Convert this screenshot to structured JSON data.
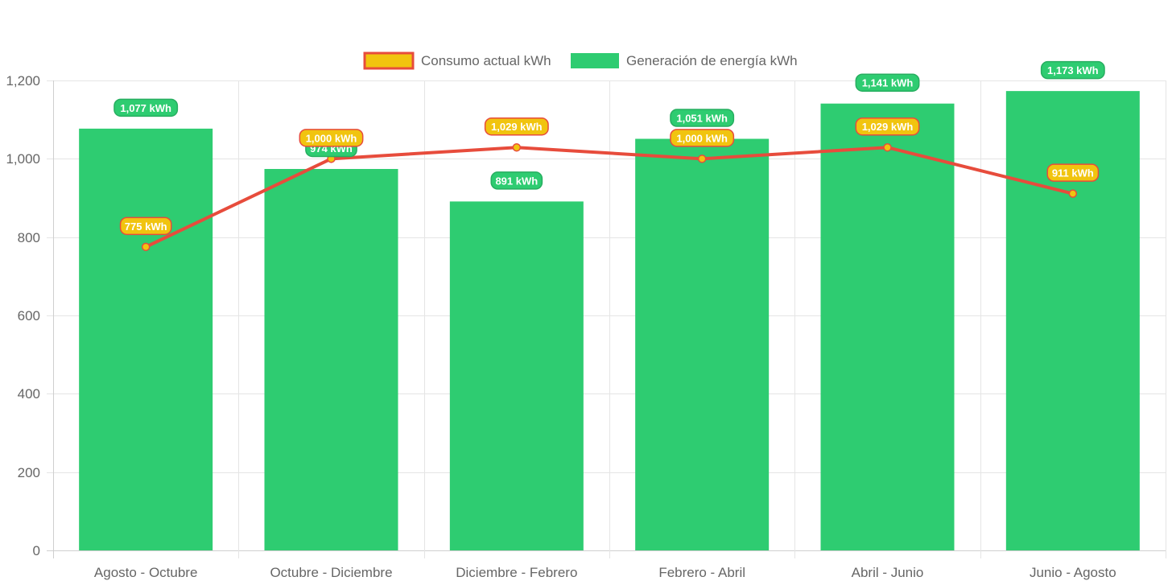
{
  "chart_data": {
    "type": "bar",
    "title": "",
    "xlabel": "",
    "ylabel": "",
    "categories": [
      "Agosto - Octubre",
      "Octubre - Diciembre",
      "Diciembre - Febrero",
      "Febrero - Abril",
      "Abril - Junio",
      "Junio - Agosto"
    ],
    "ylim": [
      0,
      1200
    ],
    "y_ticks": [
      0,
      200,
      400,
      600,
      800,
      1000,
      1200
    ],
    "y_tick_labels": [
      "0",
      "200",
      "400",
      "600",
      "800",
      "1,000",
      "1,200"
    ],
    "grid": true,
    "legend_position": "top-center",
    "series": [
      {
        "name": "Consumo actual kWh",
        "type": "line",
        "values": [
          775,
          1000,
          1029,
          1000,
          1029,
          911
        ],
        "labels": [
          "775 kWh",
          "1,000 kWh",
          "1,029 kWh",
          "1,000 kWh",
          "1,029 kWh",
          "911 kWh"
        ],
        "color": "#e74c3c",
        "fill_color": "#f1c40f"
      },
      {
        "name": "Generación de energía kWh",
        "type": "bar",
        "values": [
          1077,
          974,
          891,
          1051,
          1141,
          1173
        ],
        "labels": [
          "1,077 kWh",
          "974 kWh",
          "891 kWh",
          "1,051 kWh",
          "1,141 kWh",
          "1,173 kWh"
        ],
        "color": "#2ecc71",
        "border_color": "#27ae60"
      }
    ]
  }
}
